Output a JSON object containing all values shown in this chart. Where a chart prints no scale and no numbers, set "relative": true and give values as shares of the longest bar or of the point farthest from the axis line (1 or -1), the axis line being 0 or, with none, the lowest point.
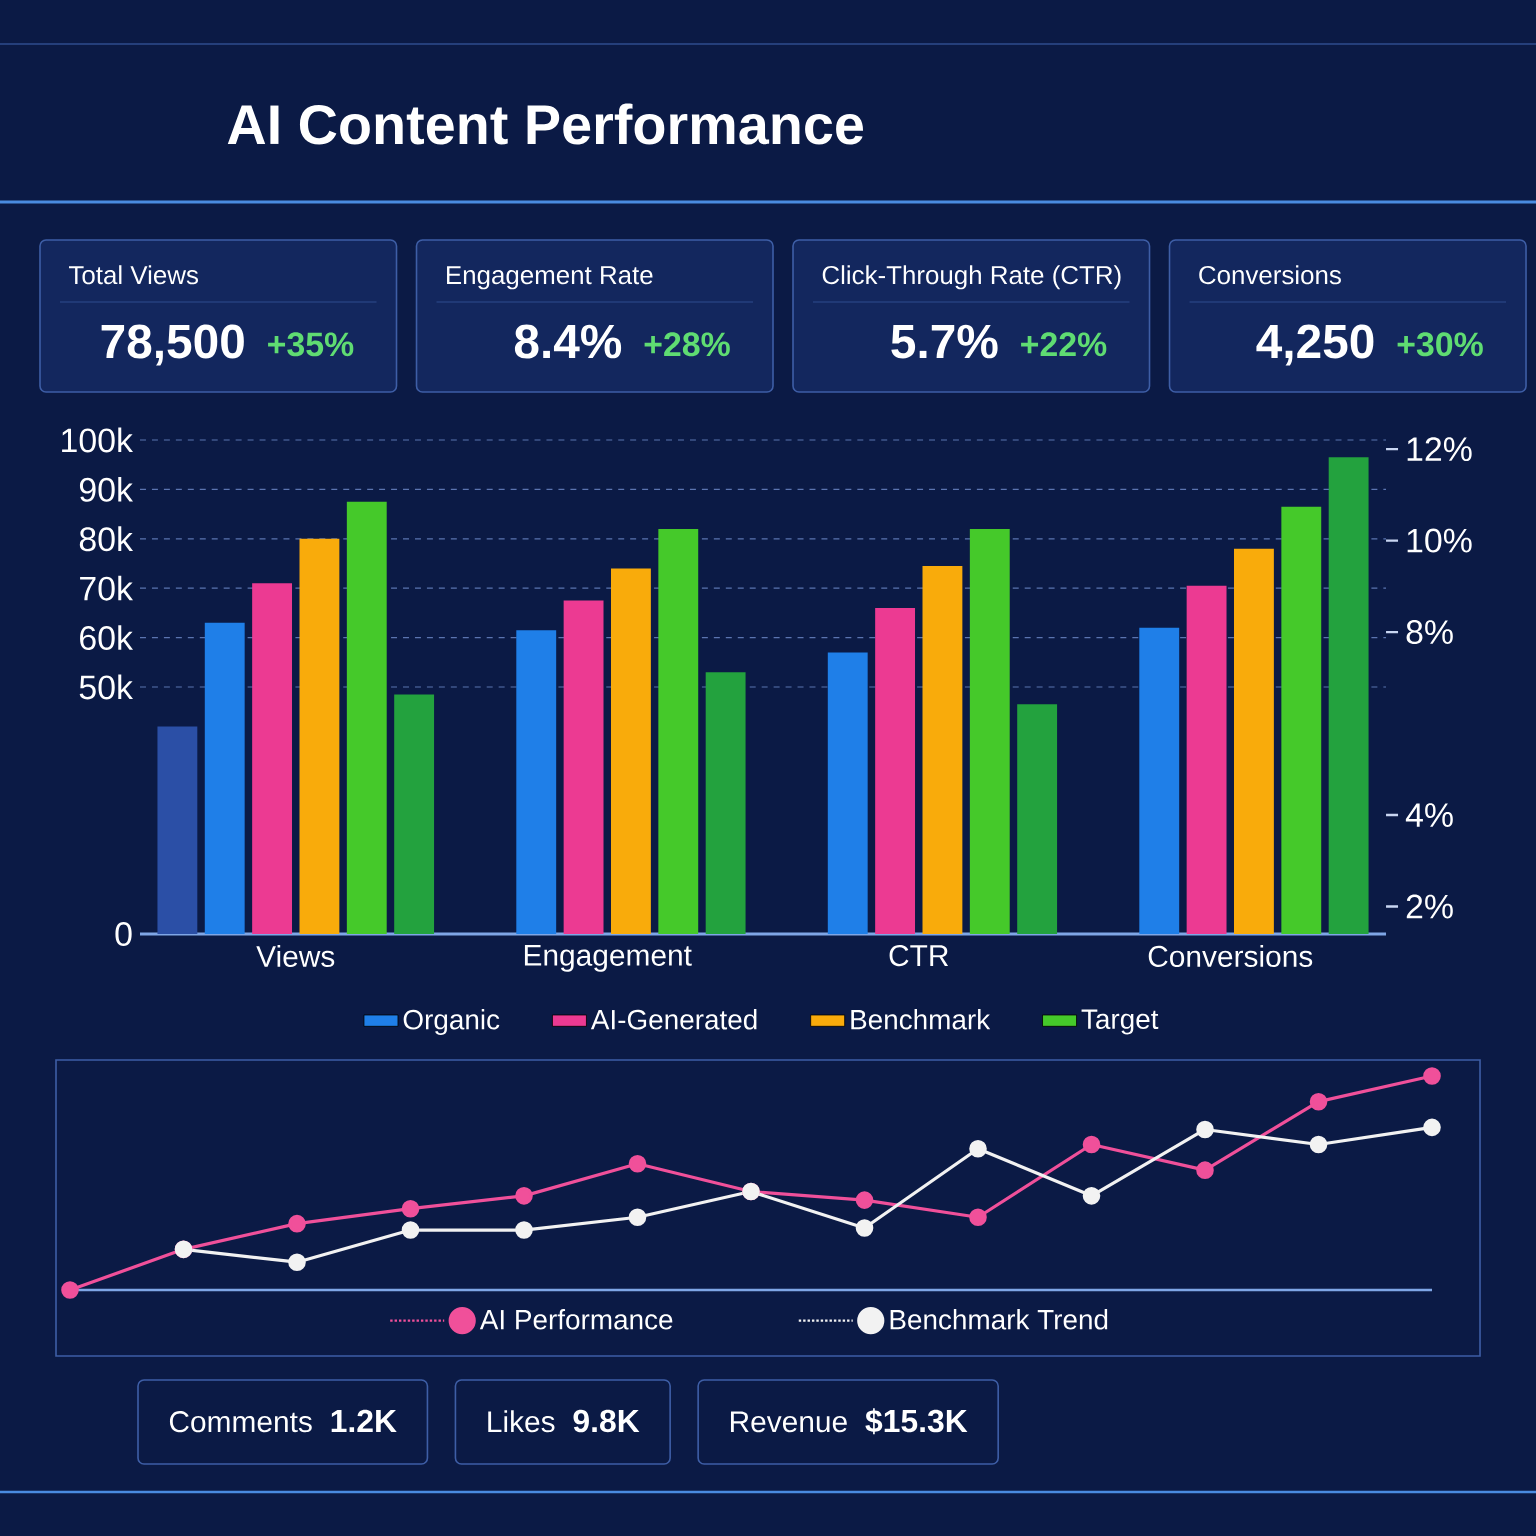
{
  "chart_data": [
    {
      "type": "other",
      "title": "AI Content Performance",
      "categories": [
        "Total Views",
        "Engagement Rate",
        "Click-Through Rate (CTR)",
        "Conversions"
      ],
      "annotations": [
        "78,500",
        "+35%",
        "8.4%",
        "+28%",
        "5.7%",
        "+22%",
        "4,250",
        "+30%"
      ]
    },
    {
      "type": "bar",
      "categories": [
        "Views",
        "Engagement",
        "CTR",
        "Conversions"
      ],
      "series": [
        {
          "color": "#2b4fa6",
          "values": [
            42000,
            null,
            null,
            null
          ]
        },
        {
          "name": "Organic",
          "color": "#1f7fe8",
          "values": [
            63000,
            61500,
            57000,
            62000
          ]
        },
        {
          "name": "AI-Generated",
          "color": "#ec3a92",
          "values": [
            71000,
            67500,
            66000,
            70500
          ]
        },
        {
          "name": "Benchmark",
          "color": "#f9ab0b",
          "values": [
            80000,
            74000,
            74500,
            78000
          ]
        },
        {
          "name": "Target",
          "color": "#45c92a",
          "values": [
            87500,
            82000,
            82000,
            86500
          ]
        },
        {
          "color": "#23a23e",
          "values": [
            48500,
            53000,
            46500,
            96500
          ]
        }
      ],
      "ylim": [
        0,
        100000
      ],
      "yticks": [
        0,
        {
          "value": 50000,
          "label": "50k"
        },
        {
          "value": 60000,
          "label": "60k"
        },
        {
          "value": 70000,
          "label": "70k"
        },
        {
          "value": 80000,
          "label": "80k"
        },
        {
          "value": 90000,
          "label": "90k"
        },
        {
          "value": 100000,
          "label": "100k"
        }
      ],
      "y2lim": [
        1.4,
        12.2
      ],
      "y2ticks": [
        {
          "value": 2,
          "label": "2%"
        },
        {
          "value": 4,
          "label": "4%"
        },
        {
          "value": 8,
          "label": "8%"
        },
        {
          "value": 10,
          "label": "10%"
        },
        {
          "value": 12,
          "label": "12%"
        }
      ],
      "grid": "y",
      "legend": "bottom"
    },
    {
      "type": "line",
      "relative": true,
      "categories": [
        null,
        null,
        null,
        null,
        null,
        null,
        null,
        null,
        null,
        null,
        null,
        null,
        null
      ],
      "series": [
        {
          "name": "AI Performance",
          "color": "#f0509a",
          "values": [
            0,
            0.19,
            0.31,
            0.38,
            0.44,
            0.59,
            0.46,
            0.42,
            0.34,
            0.68,
            0.56,
            0.88,
            1
          ]
        },
        {
          "name": "Benchmark Trend",
          "color": "#f2f2f2",
          "values": [
            null,
            0.19,
            0.13,
            0.28,
            0.28,
            0.34,
            0.46,
            0.29,
            0.66,
            0.44,
            0.75,
            0.68,
            0.76
          ]
        }
      ],
      "marker": "circle",
      "legend": "bottom"
    },
    {
      "type": "other",
      "categories": [
        "Comments",
        "Likes",
        "Revenue"
      ],
      "annotations": [
        "1.2K",
        "9.8K",
        "$15.3K"
      ]
    }
  ]
}
